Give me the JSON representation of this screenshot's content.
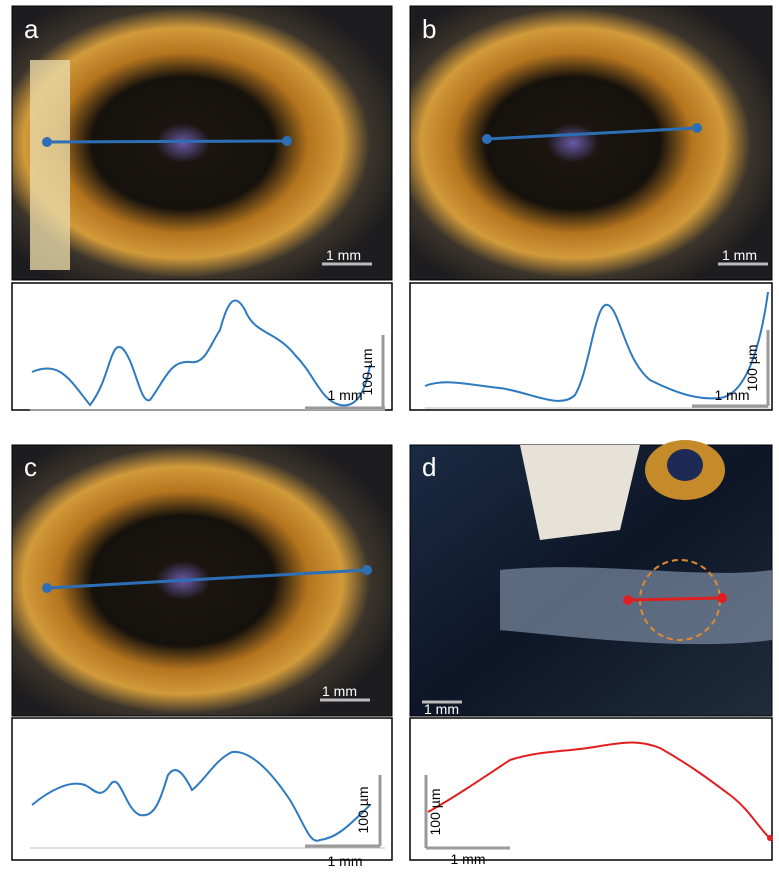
{
  "panels": [
    {
      "label": "a",
      "photo_scale": "1 mm",
      "profile_scale_x": "1 mm",
      "profile_scale_y": "100 µm"
    },
    {
      "label": "b",
      "photo_scale": "1 mm",
      "profile_scale_x": "1 mm",
      "profile_scale_y": "100 µm"
    },
    {
      "label": "c",
      "photo_scale": "1 mm",
      "profile_scale_x": "1 mm",
      "profile_scale_y": "100 µm"
    },
    {
      "label": "d",
      "photo_scale": "1 mm",
      "profile_scale_x": "1 mm",
      "profile_scale_y": "100 µm"
    }
  ]
}
